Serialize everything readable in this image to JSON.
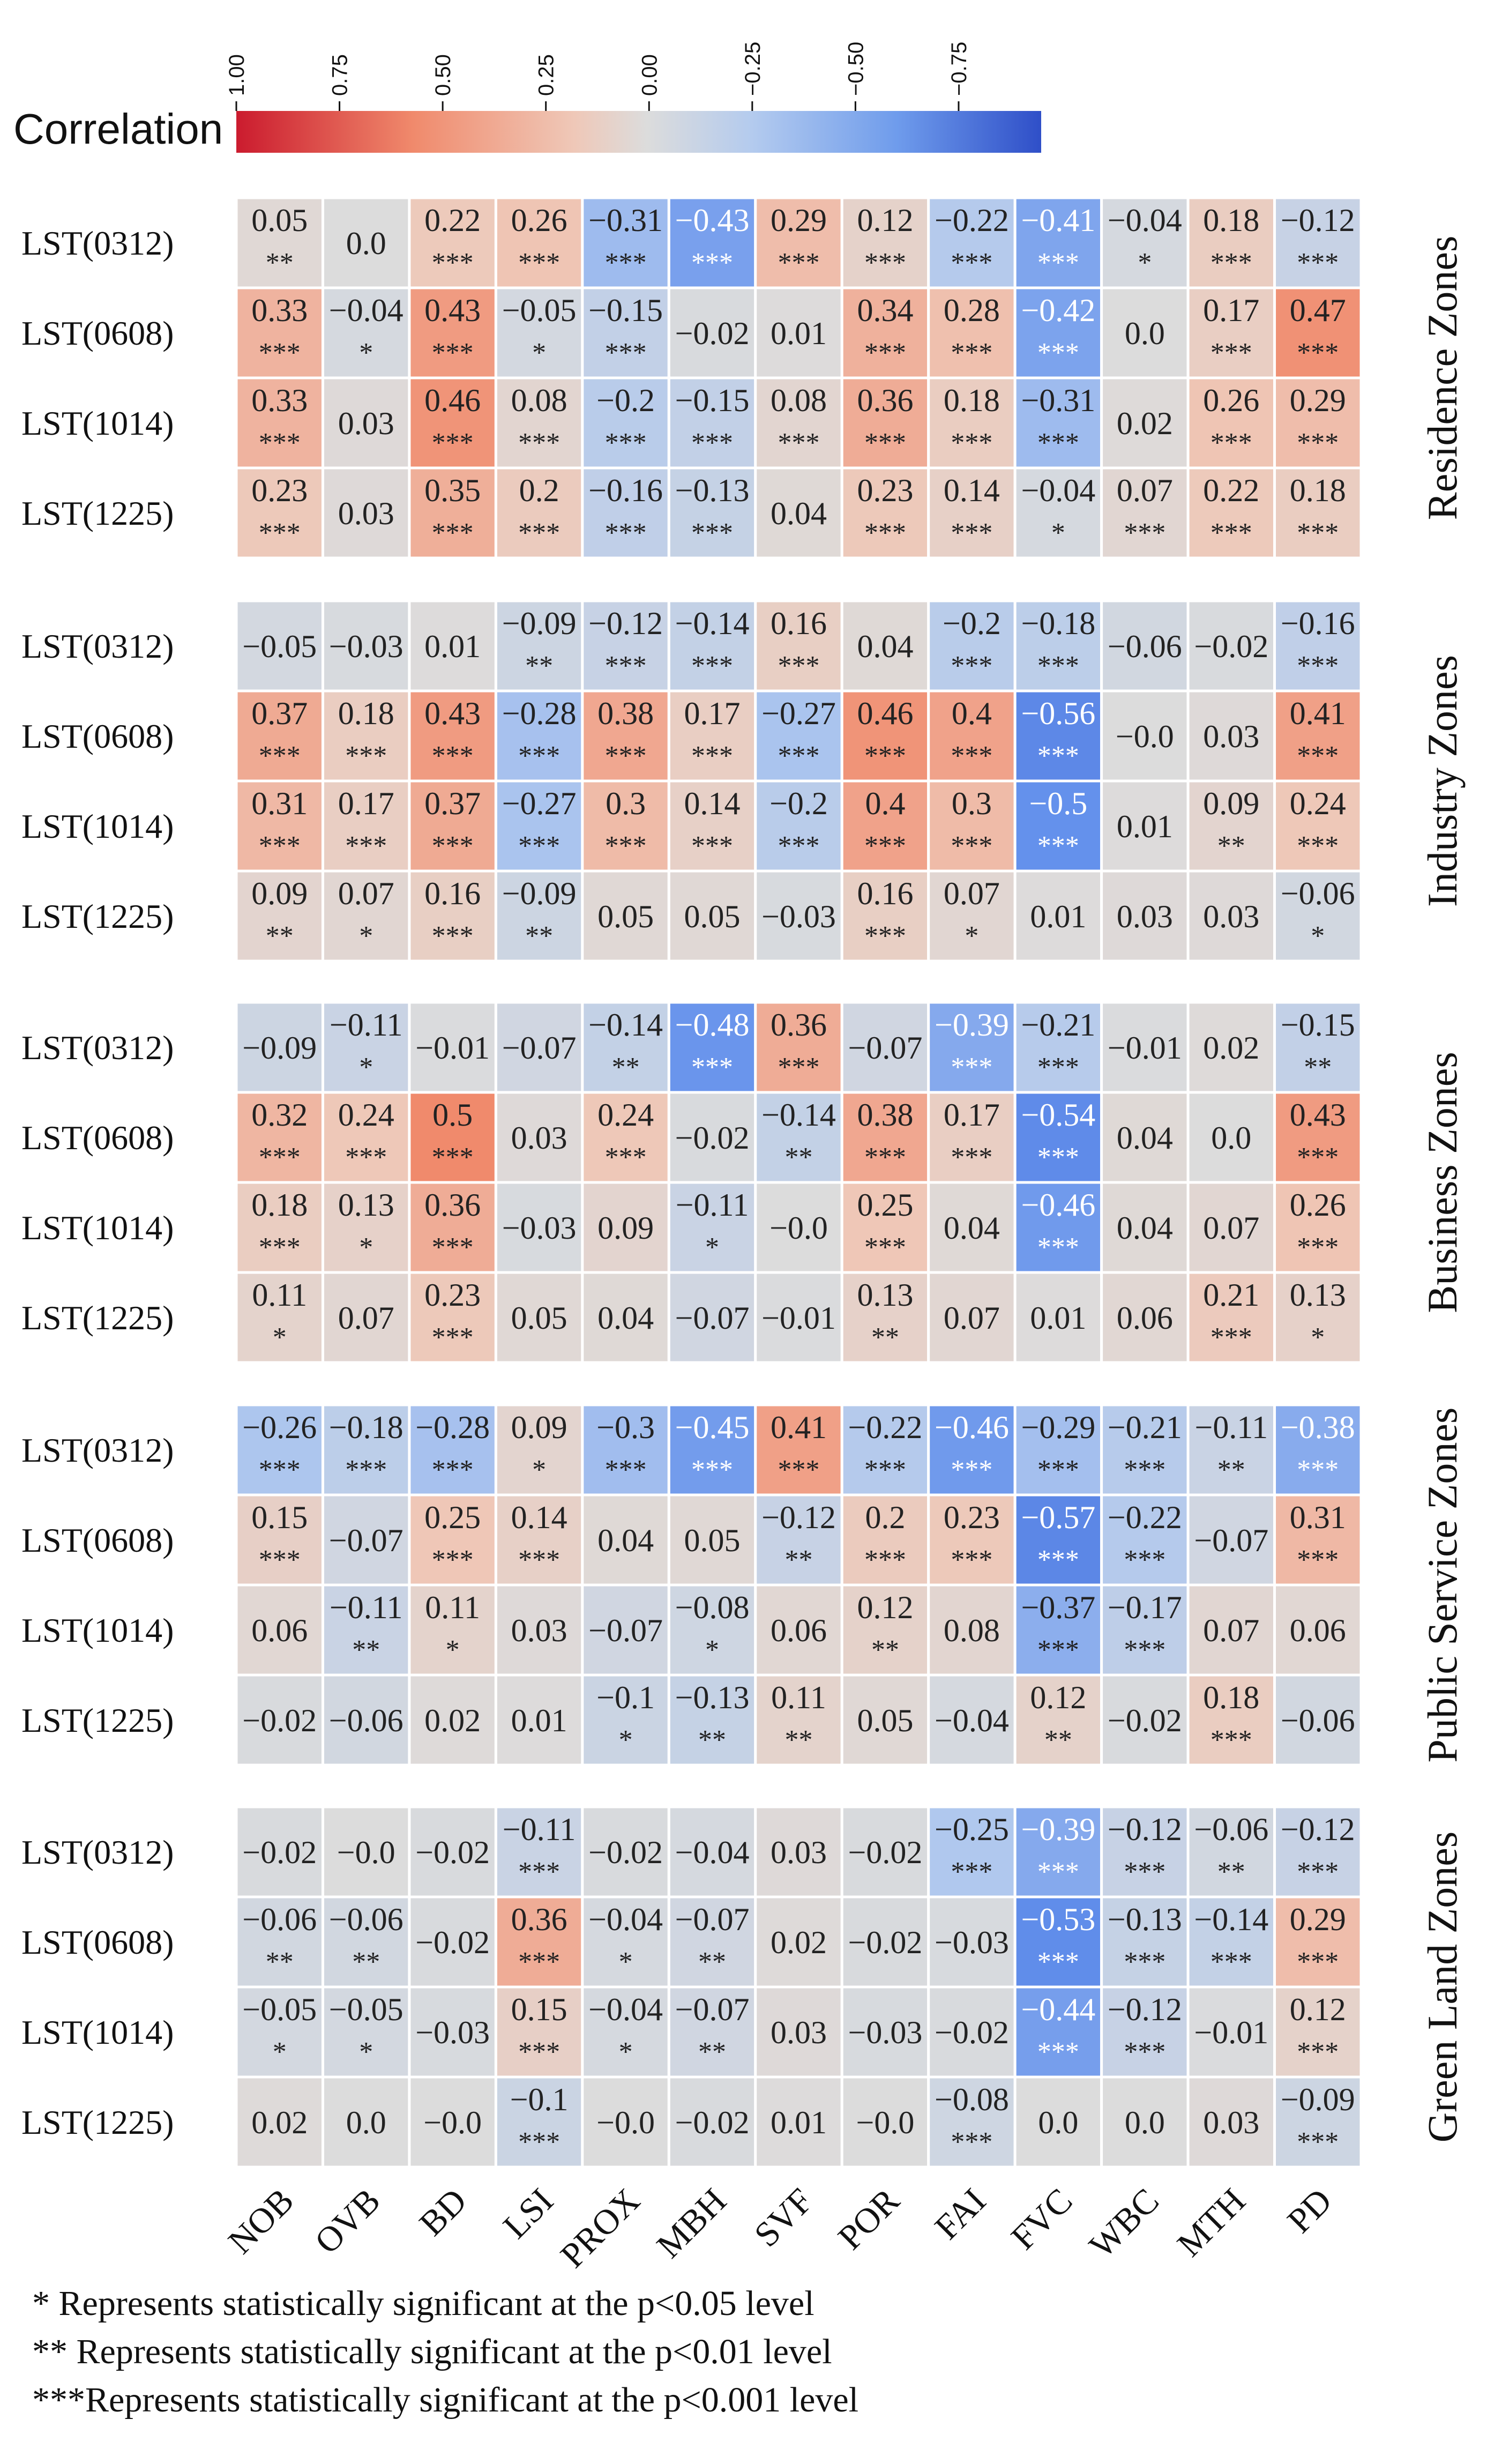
{
  "chart_data": {
    "type": "heatmap",
    "colorbar": {
      "title": "Correlation",
      "ticks": [
        "1.00",
        "0.75",
        "0.50",
        "0.25",
        "0.00",
        "−0.25",
        "−0.50",
        "−0.75"
      ],
      "tick_values": [
        1.0,
        0.75,
        0.5,
        0.25,
        0.0,
        -0.25,
        -0.5,
        -0.75
      ],
      "range": [
        1.0,
        -0.95
      ],
      "colors": {
        "positive": "#cb1b2e",
        "neutral": "#dcdcdc",
        "negative": "#2f4fc8"
      }
    },
    "columns": [
      "NOB",
      "OVB",
      "BD",
      "LSI",
      "PROX",
      "MBH",
      "SVF",
      "POR",
      "FAI",
      "FVC",
      "WBC",
      "MTH",
      "PD"
    ],
    "groups": [
      {
        "zone": "Residence Zones",
        "rows": [
          {
            "label": "LST(0312)",
            "values": [
              "0.05",
              "0.0",
              "0.22",
              "0.26",
              "−0.31",
              "−0.43",
              "0.29",
              "0.12",
              "−0.22",
              "−0.41",
              "−0.04",
              "0.18",
              "−0.12"
            ],
            "sig": [
              "**",
              "",
              "***",
              "***",
              "***",
              "***",
              "***",
              "***",
              "***",
              "***",
              "*",
              "***",
              "***"
            ]
          },
          {
            "label": "LST(0608)",
            "values": [
              "0.33",
              "−0.04",
              "0.43",
              "−0.05",
              "−0.15",
              "−0.02",
              "0.01",
              "0.34",
              "0.28",
              "−0.42",
              "0.0",
              "0.17",
              "0.47"
            ],
            "sig": [
              "***",
              "*",
              "***",
              "*",
              "***",
              "",
              "",
              "***",
              "***",
              "***",
              "",
              "***",
              "***"
            ]
          },
          {
            "label": "LST(1014)",
            "values": [
              "0.33",
              "0.03",
              "0.46",
              "0.08",
              "−0.2",
              "−0.15",
              "0.08",
              "0.36",
              "0.18",
              "−0.31",
              "0.02",
              "0.26",
              "0.29"
            ],
            "sig": [
              "***",
              "",
              "***",
              "***",
              "***",
              "***",
              "***",
              "***",
              "***",
              "***",
              "",
              "***",
              "***"
            ]
          },
          {
            "label": "LST(1225)",
            "values": [
              "0.23",
              "0.03",
              "0.35",
              "0.2",
              "−0.16",
              "−0.13",
              "0.04",
              "0.23",
              "0.14",
              "−0.04",
              "0.07",
              "0.22",
              "0.18"
            ],
            "sig": [
              "***",
              "",
              "***",
              "***",
              "***",
              "***",
              "",
              "***",
              "***",
              "*",
              "***",
              "***",
              "***"
            ]
          }
        ]
      },
      {
        "zone": "Industry Zones",
        "rows": [
          {
            "label": "LST(0312)",
            "values": [
              "−0.05",
              "−0.03",
              "0.01",
              "−0.09",
              "−0.12",
              "−0.14",
              "0.16",
              "0.04",
              "−0.2",
              "−0.18",
              "−0.06",
              "−0.02",
              "−0.16"
            ],
            "sig": [
              "",
              "",
              "",
              "**",
              "***",
              "***",
              "***",
              "",
              "***",
              "***",
              "",
              "",
              "***"
            ]
          },
          {
            "label": "LST(0608)",
            "values": [
              "0.37",
              "0.18",
              "0.43",
              "−0.28",
              "0.38",
              "0.17",
              "−0.27",
              "0.46",
              "0.4",
              "−0.56",
              "−0.0",
              "0.03",
              "0.41"
            ],
            "sig": [
              "***",
              "***",
              "***",
              "***",
              "***",
              "***",
              "***",
              "***",
              "***",
              "***",
              "",
              "",
              "***"
            ]
          },
          {
            "label": "LST(1014)",
            "values": [
              "0.31",
              "0.17",
              "0.37",
              "−0.27",
              "0.3",
              "0.14",
              "−0.2",
              "0.4",
              "0.3",
              "−0.5",
              "0.01",
              "0.09",
              "0.24"
            ],
            "sig": [
              "***",
              "***",
              "***",
              "***",
              "***",
              "***",
              "***",
              "***",
              "***",
              "***",
              "",
              "**",
              "***"
            ]
          },
          {
            "label": "LST(1225)",
            "values": [
              "0.09",
              "0.07",
              "0.16",
              "−0.09",
              "0.05",
              "0.05",
              "−0.03",
              "0.16",
              "0.07",
              "0.01",
              "0.03",
              "0.03",
              "−0.06"
            ],
            "sig": [
              "**",
              "*",
              "***",
              "**",
              "",
              "",
              "",
              "***",
              "*",
              "",
              "",
              "",
              "*"
            ]
          }
        ]
      },
      {
        "zone": "Business Zones",
        "rows": [
          {
            "label": "LST(0312)",
            "values": [
              "−0.09",
              "−0.11",
              "−0.01",
              "−0.07",
              "−0.14",
              "−0.48",
              "0.36",
              "−0.07",
              "−0.39",
              "−0.21",
              "−0.01",
              "0.02",
              "−0.15"
            ],
            "sig": [
              "",
              "*",
              "",
              "",
              "**",
              "***",
              "***",
              "",
              "***",
              "***",
              "",
              "",
              "**"
            ]
          },
          {
            "label": "LST(0608)",
            "values": [
              "0.32",
              "0.24",
              "0.5",
              "0.03",
              "0.24",
              "−0.02",
              "−0.14",
              "0.38",
              "0.17",
              "−0.54",
              "0.04",
              "0.0",
              "0.43"
            ],
            "sig": [
              "***",
              "***",
              "***",
              "",
              "***",
              "",
              "**",
              "***",
              "***",
              "***",
              "",
              "",
              "***"
            ]
          },
          {
            "label": "LST(1014)",
            "values": [
              "0.18",
              "0.13",
              "0.36",
              "−0.03",
              "0.09",
              "−0.11",
              "−0.0",
              "0.25",
              "0.04",
              "−0.46",
              "0.04",
              "0.07",
              "0.26"
            ],
            "sig": [
              "***",
              "*",
              "***",
              "",
              "",
              "*",
              "",
              "***",
              "",
              "***",
              "",
              "",
              "***"
            ]
          },
          {
            "label": "LST(1225)",
            "values": [
              "0.11",
              "0.07",
              "0.23",
              "0.05",
              "0.04",
              "−0.07",
              "−0.01",
              "0.13",
              "0.07",
              "0.01",
              "0.06",
              "0.21",
              "0.13"
            ],
            "sig": [
              "*",
              "",
              "***",
              "",
              "",
              "",
              "",
              "**",
              "",
              "",
              "",
              "***",
              "*"
            ]
          }
        ]
      },
      {
        "zone": "Public Service Zones",
        "rows": [
          {
            "label": "LST(0312)",
            "values": [
              "−0.26",
              "−0.18",
              "−0.28",
              "0.09",
              "−0.3",
              "−0.45",
              "0.41",
              "−0.22",
              "−0.46",
              "−0.29",
              "−0.21",
              "−0.11",
              "−0.38"
            ],
            "sig": [
              "***",
              "***",
              "***",
              "*",
              "***",
              "***",
              "***",
              "***",
              "***",
              "***",
              "***",
              "**",
              "***"
            ]
          },
          {
            "label": "LST(0608)",
            "values": [
              "0.15",
              "−0.07",
              "0.25",
              "0.14",
              "0.04",
              "0.05",
              "−0.12",
              "0.2",
              "0.23",
              "−0.57",
              "−0.22",
              "−0.07",
              "0.31"
            ],
            "sig": [
              "***",
              "",
              "***",
              "***",
              "",
              "",
              "**",
              "***",
              "***",
              "***",
              "***",
              "",
              "***"
            ]
          },
          {
            "label": "LST(1014)",
            "values": [
              "0.06",
              "−0.11",
              "0.11",
              "0.03",
              "−0.07",
              "−0.08",
              "0.06",
              "0.12",
              "0.08",
              "−0.37",
              "−0.17",
              "0.07",
              "0.06"
            ],
            "sig": [
              "",
              "**",
              "*",
              "",
              "",
              "*",
              "",
              "**",
              "",
              "***",
              "***",
              "",
              ""
            ]
          },
          {
            "label": "LST(1225)",
            "values": [
              "−0.02",
              "−0.06",
              "0.02",
              "0.01",
              "−0.1",
              "−0.13",
              "0.11",
              "0.05",
              "−0.04",
              "0.12",
              "−0.02",
              "0.18",
              "−0.06"
            ],
            "sig": [
              "",
              "",
              "",
              "",
              "*",
              "**",
              "**",
              "",
              "",
              "**",
              "",
              "***",
              ""
            ]
          }
        ]
      },
      {
        "zone": "Green Land Zones",
        "rows": [
          {
            "label": "LST(0312)",
            "values": [
              "−0.02",
              "−0.0",
              "−0.02",
              "−0.11",
              "−0.02",
              "−0.04",
              "0.03",
              "−0.02",
              "−0.25",
              "−0.39",
              "−0.12",
              "−0.06",
              "−0.12"
            ],
            "sig": [
              "",
              "",
              "",
              "***",
              "",
              "",
              "",
              "",
              "***",
              "***",
              "***",
              "**",
              "***"
            ]
          },
          {
            "label": "LST(0608)",
            "values": [
              "−0.06",
              "−0.06",
              "−0.02",
              "0.36",
              "−0.04",
              "−0.07",
              "0.02",
              "−0.02",
              "−0.03",
              "−0.53",
              "−0.13",
              "−0.14",
              "0.29"
            ],
            "sig": [
              "**",
              "**",
              "",
              "***",
              "*",
              "**",
              "",
              "",
              "",
              "***",
              "***",
              "***",
              "***"
            ]
          },
          {
            "label": "LST(1014)",
            "values": [
              "−0.05",
              "−0.05",
              "−0.03",
              "0.15",
              "−0.04",
              "−0.07",
              "0.03",
              "−0.03",
              "−0.02",
              "−0.44",
              "−0.12",
              "−0.01",
              "0.12"
            ],
            "sig": [
              "*",
              "*",
              "",
              "***",
              "*",
              "**",
              "",
              "",
              "",
              "***",
              "***",
              "",
              "***"
            ]
          },
          {
            "label": "LST(1225)",
            "values": [
              "0.02",
              "0.0",
              "−0.0",
              "−0.1",
              "−0.0",
              "−0.02",
              "0.01",
              "−0.0",
              "−0.08",
              "0.0",
              "0.0",
              "0.03",
              "−0.09"
            ],
            "sig": [
              "",
              "",
              "",
              "***",
              "",
              "",
              "",
              "",
              "***",
              "",
              "",
              "",
              "***"
            ]
          }
        ]
      }
    ]
  },
  "footnotes": [
    {
      "stars": "*",
      "text": " Represents statistically significant at the p<0.05 level"
    },
    {
      "stars": "**",
      "text": " Represents statistically significant at the p<0.01 level"
    },
    {
      "stars": "***",
      "text": "Represents statistically significant at the p<0.001 level"
    }
  ]
}
